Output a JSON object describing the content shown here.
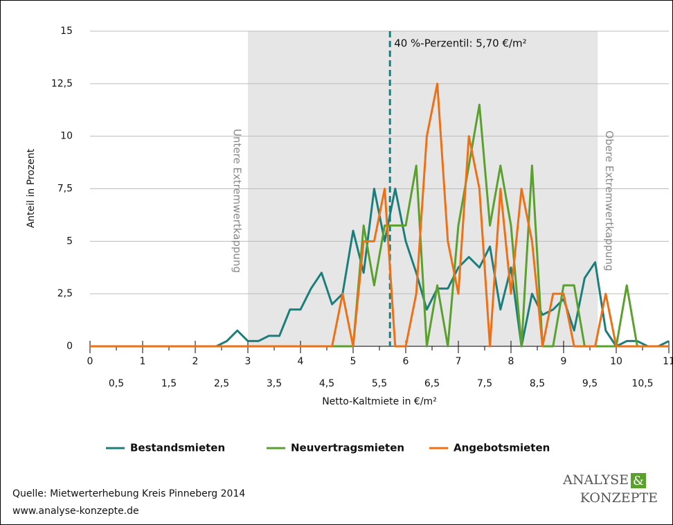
{
  "chart_data": {
    "type": "line",
    "y_label": "Anteil in Prozent",
    "x_label": "Netto-Kaltmiete in €/m²",
    "x": [
      0,
      0.2,
      0.4,
      0.6,
      0.8,
      1.0,
      1.2,
      1.4,
      1.6,
      1.8,
      2.0,
      2.2,
      2.4,
      2.6,
      2.8,
      3.0,
      3.2,
      3.4,
      3.6,
      3.8,
      4.0,
      4.2,
      4.4,
      4.6,
      4.8,
      5.0,
      5.2,
      5.4,
      5.6,
      5.8,
      6.0,
      6.2,
      6.4,
      6.6,
      6.8,
      7.0,
      7.2,
      7.4,
      7.6,
      7.8,
      8.0,
      8.2,
      8.4,
      8.6,
      8.8,
      9.0,
      9.2,
      9.4,
      9.6,
      9.8,
      10.0,
      10.2,
      10.4,
      10.6,
      10.8,
      11.0
    ],
    "series": [
      {
        "name": "Bestandsmieten",
        "color": "#1a7f7a",
        "values": [
          0,
          0,
          0,
          0,
          0,
          0,
          0,
          0,
          0,
          0,
          0,
          0,
          0,
          0.25,
          0.75,
          0.25,
          0.25,
          0.5,
          0.5,
          1.75,
          1.75,
          2.75,
          3.5,
          2.0,
          2.5,
          5.5,
          3.5,
          7.5,
          5.0,
          7.5,
          5.0,
          3.5,
          1.75,
          2.75,
          2.75,
          3.75,
          4.25,
          3.75,
          4.75,
          1.75,
          3.75,
          0,
          2.5,
          1.5,
          1.75,
          2.25,
          0.75,
          3.25,
          4.0,
          0.75,
          0,
          0.25,
          0.25,
          0,
          0,
          0.25
        ]
      },
      {
        "name": "Neuvertragsmieten",
        "color": "#5aa02c",
        "values": [
          0,
          0,
          0,
          0,
          0,
          0,
          0,
          0,
          0,
          0,
          0,
          0,
          0,
          0,
          0,
          0,
          0,
          0,
          0,
          0,
          0,
          0,
          0,
          0,
          0,
          0,
          5.75,
          2.9,
          5.75,
          5.75,
          5.75,
          8.6,
          0,
          2.9,
          0,
          5.75,
          8.6,
          11.5,
          5.75,
          8.6,
          5.75,
          0,
          8.6,
          0,
          0,
          2.9,
          2.9,
          0,
          0,
          0,
          0,
          2.9,
          0,
          0,
          0,
          0
        ]
      },
      {
        "name": "Angebotsmieten",
        "color": "#ee7014",
        "values": [
          0,
          0,
          0,
          0,
          0,
          0,
          0,
          0,
          0,
          0,
          0,
          0,
          0,
          0,
          0,
          0,
          0,
          0,
          0,
          0,
          0,
          0,
          0,
          0,
          2.5,
          0,
          5.0,
          5.0,
          7.5,
          0,
          0,
          2.5,
          10.0,
          12.5,
          5.0,
          2.5,
          10.0,
          7.5,
          0,
          7.5,
          2.5,
          7.5,
          5.0,
          0,
          2.5,
          2.5,
          0,
          0,
          0,
          2.5,
          0,
          0,
          0,
          0,
          0,
          0
        ]
      }
    ],
    "xlim": [
      0,
      11
    ],
    "ylim": [
      0,
      15
    ],
    "xticks": [
      0,
      {
        "value": 0.5,
        "label": "0,5"
      },
      1,
      {
        "value": 1.5,
        "label": "1,5"
      },
      2,
      {
        "value": 2.5,
        "label": "2,5"
      },
      3,
      {
        "value": 3.5,
        "label": "3,5"
      },
      4,
      {
        "value": 4.5,
        "label": "4,5"
      },
      5,
      {
        "value": 5.5,
        "label": "5,5"
      },
      6,
      {
        "value": 6.5,
        "label": "6,5"
      },
      7,
      {
        "value": 7.5,
        "label": "7,5"
      },
      8,
      {
        "value": 8.5,
        "label": "8,5"
      },
      9,
      {
        "value": 9.5,
        "label": "9,5"
      },
      10,
      {
        "value": 10.5,
        "label": "10,5"
      },
      11
    ],
    "yticks": [
      0,
      {
        "value": 2.5,
        "label": "2,5"
      },
      5,
      {
        "value": 7.5,
        "label": "7,5"
      },
      10,
      {
        "value": 12.5,
        "label": "12,5"
      },
      15
    ],
    "grid": true,
    "shaded_region": {
      "range": [
        3.0,
        9.65
      ],
      "lower_label": "Untere Extremwertkappung",
      "upper_label": "Obere Extremwertkappung"
    },
    "reference_line": {
      "x": 5.7,
      "label": "40 %-Perzentil: 5,70 €/m²",
      "color": "#1a7f7a"
    },
    "source": "Quelle: Mietwerterhebung Kreis Pinneberg 2014",
    "url": "www.analyse-konzepte.de",
    "logo": {
      "line1": "ANALYSE",
      "ampersand": "&",
      "line2": "KONZEPTE"
    }
  }
}
